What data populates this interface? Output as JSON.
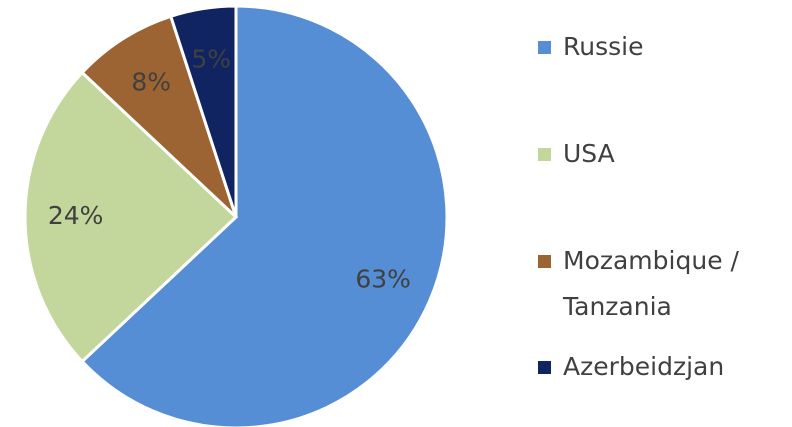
{
  "chart_data": {
    "type": "pie",
    "categories": [
      "Russie",
      "USA",
      "Mozambique / Tanzania",
      "Azerbeidzjan"
    ],
    "values": [
      63,
      24,
      8,
      5
    ],
    "value_labels": [
      "63%",
      "24%",
      "8%",
      "5%"
    ],
    "colors": [
      "#558ed5",
      "#c3d69b",
      "#9c6432",
      "#0f2461"
    ],
    "legend": "right"
  }
}
